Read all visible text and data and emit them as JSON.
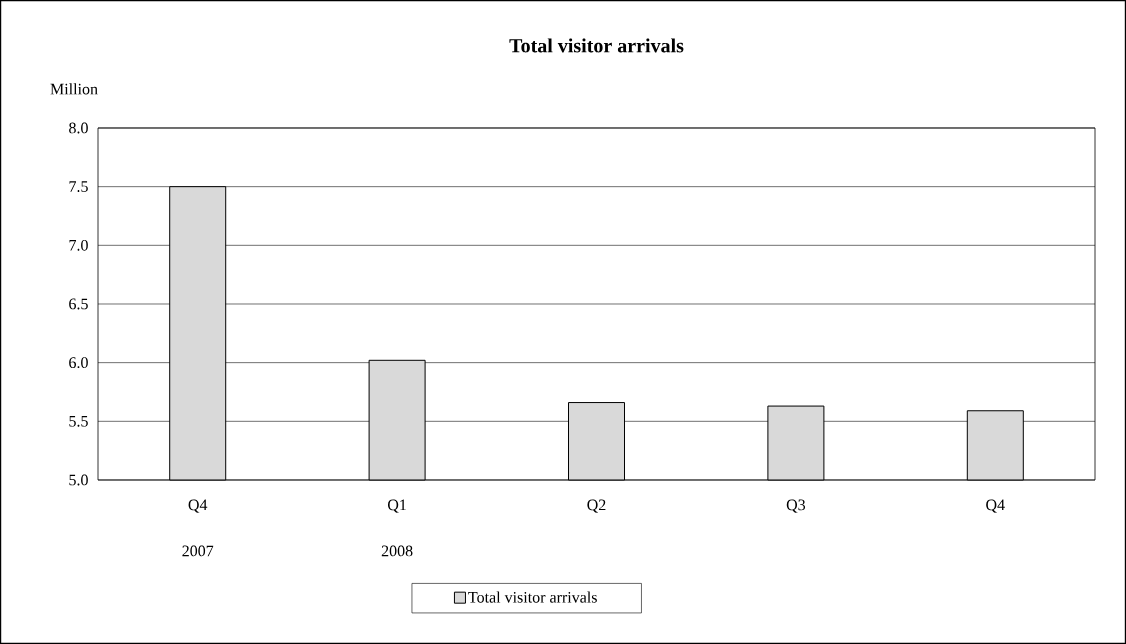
{
  "chart_data": {
    "type": "bar",
    "title": "Total visitor arrivals",
    "ylabel": "Million",
    "categories": [
      "Q4",
      "Q1",
      "Q2",
      "Q3",
      "Q4"
    ],
    "series": [
      {
        "name": "Total visitor arrivals",
        "color": "#d9d9d9",
        "values": [
          7.5,
          6.02,
          5.66,
          5.63,
          5.59
        ]
      }
    ],
    "annotations": [
      "2007",
      "2008"
    ],
    "ylim": [
      5.0,
      8.0
    ],
    "yticks": [
      {
        "value": 5.0,
        "label": "5.0"
      },
      {
        "value": 5.5,
        "label": "5.5"
      },
      {
        "value": 6.0,
        "label": "6.0"
      },
      {
        "value": 6.5,
        "label": "6.5"
      },
      {
        "value": 7.0,
        "label": "7.0"
      },
      {
        "value": 7.5,
        "label": "7.5"
      },
      {
        "value": 8.0,
        "label": "8.0"
      }
    ],
    "grid": "y",
    "legend": "bottom"
  }
}
